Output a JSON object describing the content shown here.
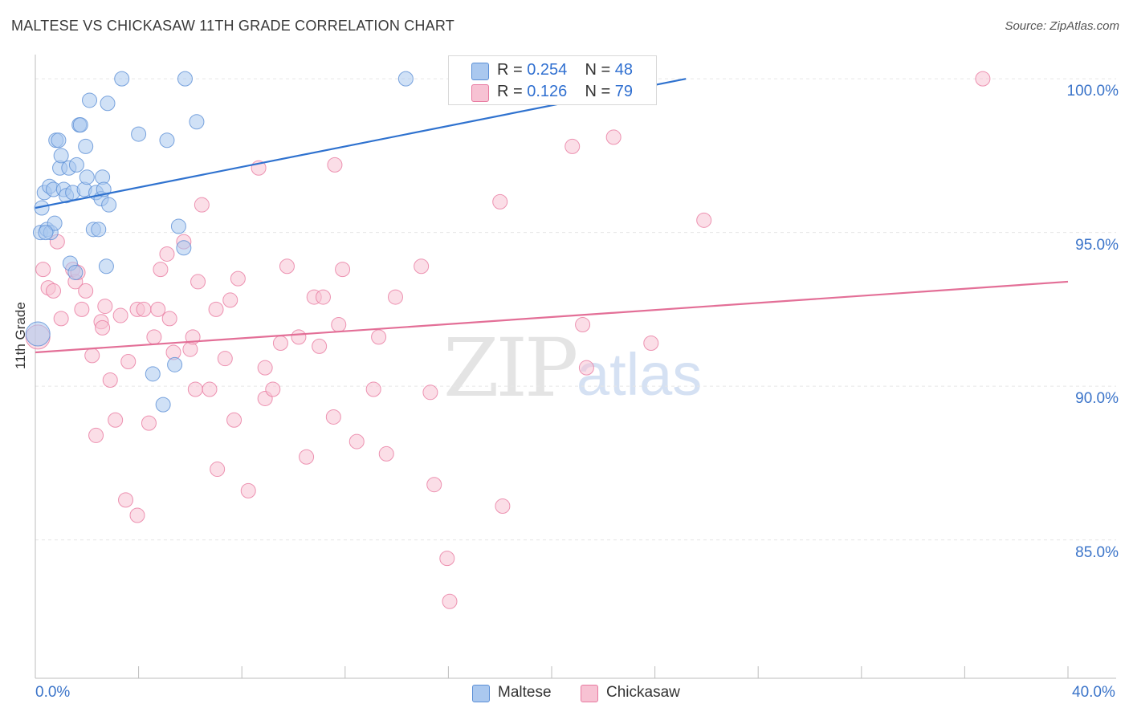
{
  "title": "MALTESE VS CHICKASAW 11TH GRADE CORRELATION CHART",
  "source": "Source: ZipAtlas.com",
  "watermark": {
    "zip": "ZIP",
    "atlas": "atlas"
  },
  "colors": {
    "maltese": "#5b8fd6",
    "maltese_fill": "#aac8ef",
    "chickasaw": "#e87aa0",
    "chickasaw_fill": "#f7c2d3",
    "blue_line": "#2f72cf",
    "pink_line": "#e36f97",
    "tick_text": "#3b74c9"
  },
  "legend_top": {
    "rows": [
      {
        "r_label": "R = ",
        "r_value": "0.254",
        "n_label": "N = ",
        "n_value": "48"
      },
      {
        "r_label": "R = ",
        "r_value": "0.126",
        "n_label": "N = ",
        "n_value": "79"
      }
    ]
  },
  "legend_bottom": {
    "maltese": "Maltese",
    "chickasaw": "Chickasaw"
  },
  "chart_data": {
    "type": "scatter",
    "title": "MALTESE VS CHICKASAW 11TH GRADE CORRELATION CHART",
    "xlabel": "",
    "ylabel": "11th Grade",
    "xlim": [
      0,
      40
    ],
    "ylim": [
      80.5,
      100.5
    ],
    "x_ticks": [
      "0.0%",
      "40.0%"
    ],
    "y_ticks": [
      {
        "value": 100,
        "label": "100.0%"
      },
      {
        "value": 95,
        "label": "95.0%"
      },
      {
        "value": 90,
        "label": "90.0%"
      },
      {
        "value": 85,
        "label": "85.0%"
      }
    ],
    "grid": true,
    "legend_position": "bottom",
    "series": [
      {
        "name": "Maltese",
        "R": 0.254,
        "N": 48,
        "trend": {
          "x": [
            0.0,
            25.2
          ],
          "y": [
            95.8,
            100.0
          ]
        },
        "points": [
          [
            0.1,
            91.7
          ],
          [
            0.2,
            95.0
          ],
          [
            0.25,
            95.8
          ],
          [
            0.35,
            96.3
          ],
          [
            0.45,
            95.1
          ],
          [
            0.55,
            96.5
          ],
          [
            0.6,
            95.0
          ],
          [
            0.7,
            96.4
          ],
          [
            0.75,
            95.3
          ],
          [
            0.8,
            98.0
          ],
          [
            0.9,
            98.0
          ],
          [
            0.95,
            97.1
          ],
          [
            1.0,
            97.5
          ],
          [
            1.1,
            96.4
          ],
          [
            1.2,
            96.2
          ],
          [
            1.3,
            97.1
          ],
          [
            1.35,
            94.0
          ],
          [
            1.45,
            96.3
          ],
          [
            1.55,
            93.7
          ],
          [
            1.6,
            97.2
          ],
          [
            1.7,
            98.5
          ],
          [
            1.75,
            98.5
          ],
          [
            1.9,
            96.4
          ],
          [
            1.95,
            97.8
          ],
          [
            2.0,
            96.8
          ],
          [
            2.1,
            99.3
          ],
          [
            2.25,
            95.1
          ],
          [
            2.35,
            96.3
          ],
          [
            2.45,
            95.1
          ],
          [
            2.55,
            96.1
          ],
          [
            2.6,
            96.8
          ],
          [
            2.65,
            96.4
          ],
          [
            2.75,
            93.9
          ],
          [
            2.8,
            99.2
          ],
          [
            2.85,
            95.9
          ],
          [
            3.35,
            100.0
          ],
          [
            4.0,
            98.2
          ],
          [
            4.55,
            90.4
          ],
          [
            4.95,
            89.4
          ],
          [
            5.1,
            98.0
          ],
          [
            5.4,
            90.7
          ],
          [
            5.55,
            95.2
          ],
          [
            5.75,
            94.5
          ],
          [
            5.8,
            100.0
          ],
          [
            6.25,
            98.6
          ],
          [
            14.35,
            100.0
          ],
          [
            21.3,
            100.0
          ],
          [
            0.4,
            95.0
          ]
        ]
      },
      {
        "name": "Chickasaw",
        "R": 0.126,
        "N": 79,
        "trend": {
          "x": [
            0.0,
            40.0
          ],
          "y": [
            91.1,
            93.4
          ]
        },
        "points": [
          [
            0.1,
            91.6
          ],
          [
            0.3,
            93.8
          ],
          [
            0.5,
            93.2
          ],
          [
            0.7,
            93.1
          ],
          [
            0.85,
            94.7
          ],
          [
            1.0,
            92.2
          ],
          [
            1.45,
            93.8
          ],
          [
            1.55,
            93.4
          ],
          [
            1.65,
            93.7
          ],
          [
            1.8,
            92.5
          ],
          [
            1.95,
            93.1
          ],
          [
            2.2,
            91.0
          ],
          [
            2.35,
            88.4
          ],
          [
            2.55,
            92.1
          ],
          [
            2.7,
            92.6
          ],
          [
            2.9,
            90.2
          ],
          [
            3.1,
            88.9
          ],
          [
            3.3,
            92.3
          ],
          [
            3.5,
            86.3
          ],
          [
            3.6,
            90.8
          ],
          [
            3.95,
            85.8
          ],
          [
            3.95,
            92.5
          ],
          [
            4.2,
            92.5
          ],
          [
            4.4,
            88.8
          ],
          [
            4.6,
            91.6
          ],
          [
            4.85,
            93.8
          ],
          [
            5.1,
            94.3
          ],
          [
            5.2,
            92.2
          ],
          [
            5.35,
            91.1
          ],
          [
            5.75,
            94.7
          ],
          [
            6.0,
            91.2
          ],
          [
            6.1,
            91.6
          ],
          [
            6.2,
            89.9
          ],
          [
            6.3,
            93.4
          ],
          [
            6.45,
            95.9
          ],
          [
            6.75,
            89.9
          ],
          [
            7.0,
            92.5
          ],
          [
            7.05,
            87.3
          ],
          [
            7.35,
            90.9
          ],
          [
            7.55,
            92.8
          ],
          [
            7.7,
            88.9
          ],
          [
            7.85,
            93.5
          ],
          [
            8.25,
            86.6
          ],
          [
            8.65,
            97.1
          ],
          [
            8.9,
            89.6
          ],
          [
            8.9,
            90.6
          ],
          [
            9.2,
            89.9
          ],
          [
            9.5,
            91.4
          ],
          [
            9.75,
            93.9
          ],
          [
            10.2,
            91.6
          ],
          [
            10.5,
            87.7
          ],
          [
            10.8,
            92.9
          ],
          [
            11.0,
            91.3
          ],
          [
            11.15,
            92.9
          ],
          [
            11.55,
            89.0
          ],
          [
            11.6,
            97.2
          ],
          [
            11.75,
            92.0
          ],
          [
            11.9,
            93.8
          ],
          [
            12.45,
            88.2
          ],
          [
            13.1,
            89.9
          ],
          [
            13.3,
            91.6
          ],
          [
            13.6,
            87.8
          ],
          [
            13.95,
            92.9
          ],
          [
            14.95,
            93.9
          ],
          [
            15.3,
            89.8
          ],
          [
            15.45,
            86.8
          ],
          [
            15.95,
            84.4
          ],
          [
            16.05,
            83.0
          ],
          [
            18.0,
            96.0
          ],
          [
            18.1,
            86.1
          ],
          [
            20.8,
            97.8
          ],
          [
            21.2,
            92.0
          ],
          [
            21.35,
            90.6
          ],
          [
            22.4,
            98.1
          ],
          [
            23.85,
            91.4
          ],
          [
            25.9,
            95.4
          ],
          [
            36.7,
            100.0
          ],
          [
            4.75,
            92.5
          ],
          [
            2.6,
            91.9
          ]
        ]
      }
    ]
  }
}
